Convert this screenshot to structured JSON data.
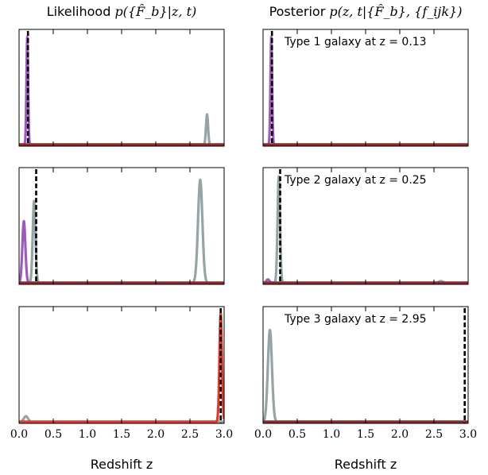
{
  "chart_data": [
    {
      "type": "line",
      "column_title": {
        "prefix": "Likelihood",
        "math": "p({F̂_b}|z, t)"
      },
      "panel_text": "",
      "xlim": [
        0,
        3
      ],
      "ylim": [
        0,
        1
      ],
      "xticks": [
        "0.0",
        "0.5",
        "1.0",
        "1.5",
        "2.0",
        "2.5",
        "3.0"
      ],
      "xlabel": "",
      "true_z": 0.13,
      "series": [
        {
          "color": "#9d5bbd",
          "peaks": [
            {
              "mu": 0.12,
              "sigma": 0.012,
              "amp": 0.96
            }
          ]
        },
        {
          "color": "#95a5a6",
          "peaks": [
            {
              "mu": 2.75,
              "sigma": 0.015,
              "amp": 0.27
            }
          ]
        },
        {
          "color": "#8b2a2a",
          "peaks": []
        }
      ]
    },
    {
      "type": "line",
      "column_title": {
        "prefix": "Posterior",
        "math": "p(z, t|{F̂_b}, {f_ijk})"
      },
      "panel_text": "Type 1 galaxy at z = 0.13",
      "xlim": [
        0,
        3
      ],
      "ylim": [
        0,
        1
      ],
      "xticks": [
        "0.0",
        "0.5",
        "1.0",
        "1.5",
        "2.0",
        "2.5",
        "3.0"
      ],
      "xlabel": "",
      "true_z": 0.13,
      "series": [
        {
          "color": "#9d5bbd",
          "peaks": [
            {
              "mu": 0.12,
              "sigma": 0.012,
              "amp": 0.96
            }
          ]
        },
        {
          "color": "#95a5a6",
          "peaks": []
        },
        {
          "color": "#8b2a2a",
          "peaks": []
        }
      ]
    },
    {
      "type": "line",
      "column_title": null,
      "panel_text": "",
      "xlim": [
        0,
        3
      ],
      "ylim": [
        0,
        1
      ],
      "xticks": [
        "0.0",
        "0.5",
        "1.0",
        "1.5",
        "2.0",
        "2.5",
        "3.0"
      ],
      "xlabel": "",
      "true_z": 0.25,
      "series": [
        {
          "color": "#9d5bbd",
          "peaks": [
            {
              "mu": 0.07,
              "sigma": 0.022,
              "amp": 0.55
            }
          ]
        },
        {
          "color": "#95a5a6",
          "peaks": [
            {
              "mu": 0.22,
              "sigma": 0.02,
              "amp": 0.73
            },
            {
              "mu": 2.65,
              "sigma": 0.032,
              "amp": 0.92
            }
          ]
        },
        {
          "color": "#8b2a2a",
          "peaks": []
        }
      ]
    },
    {
      "type": "line",
      "column_title": null,
      "panel_text": "Type 2 galaxy at z = 0.25",
      "xlim": [
        0,
        3
      ],
      "ylim": [
        0,
        1
      ],
      "xticks": [
        "0.0",
        "0.5",
        "1.0",
        "1.5",
        "2.0",
        "2.5",
        "3.0"
      ],
      "xlabel": "",
      "true_z": 0.25,
      "series": [
        {
          "color": "#9d5bbd",
          "peaks": [
            {
              "mu": 0.07,
              "sigma": 0.022,
              "amp": 0.03
            }
          ]
        },
        {
          "color": "#95a5a6",
          "peaks": [
            {
              "mu": 0.23,
              "sigma": 0.018,
              "amp": 0.95
            },
            {
              "mu": 2.6,
              "sigma": 0.03,
              "amp": 0.015
            }
          ]
        },
        {
          "color": "#8b2a2a",
          "peaks": []
        }
      ]
    },
    {
      "type": "line",
      "column_title": null,
      "panel_text": "",
      "xlim": [
        0,
        3
      ],
      "ylim": [
        0,
        1
      ],
      "xticks": [
        "0.0",
        "0.5",
        "1.0",
        "1.5",
        "2.0",
        "2.5",
        "3.0"
      ],
      "xlabel": "Redshift z",
      "true_z": 2.95,
      "series": [
        {
          "color": "#9d5bbd",
          "peaks": []
        },
        {
          "color": "#95a5a6",
          "peaks": [
            {
              "mu": 0.1,
              "sigma": 0.03,
              "amp": 0.05
            }
          ]
        },
        {
          "color": "#e03a2e",
          "peaks": [
            {
              "mu": 2.95,
              "sigma": 0.018,
              "amp": 0.97
            }
          ]
        }
      ]
    },
    {
      "type": "line",
      "column_title": null,
      "panel_text": "Type 3 galaxy at z = 2.95",
      "xlim": [
        0,
        3
      ],
      "ylim": [
        0,
        1
      ],
      "xticks": [
        "0.0",
        "0.5",
        "1.0",
        "1.5",
        "2.0",
        "2.5",
        "3.0"
      ],
      "xlabel": "Redshift z",
      "true_z": 2.95,
      "series": [
        {
          "color": "#9d5bbd",
          "peaks": []
        },
        {
          "color": "#95a5a6",
          "peaks": [
            {
              "mu": 0.1,
              "sigma": 0.03,
              "amp": 0.82
            }
          ]
        },
        {
          "color": "#8b2a2a",
          "peaks": []
        }
      ]
    }
  ]
}
